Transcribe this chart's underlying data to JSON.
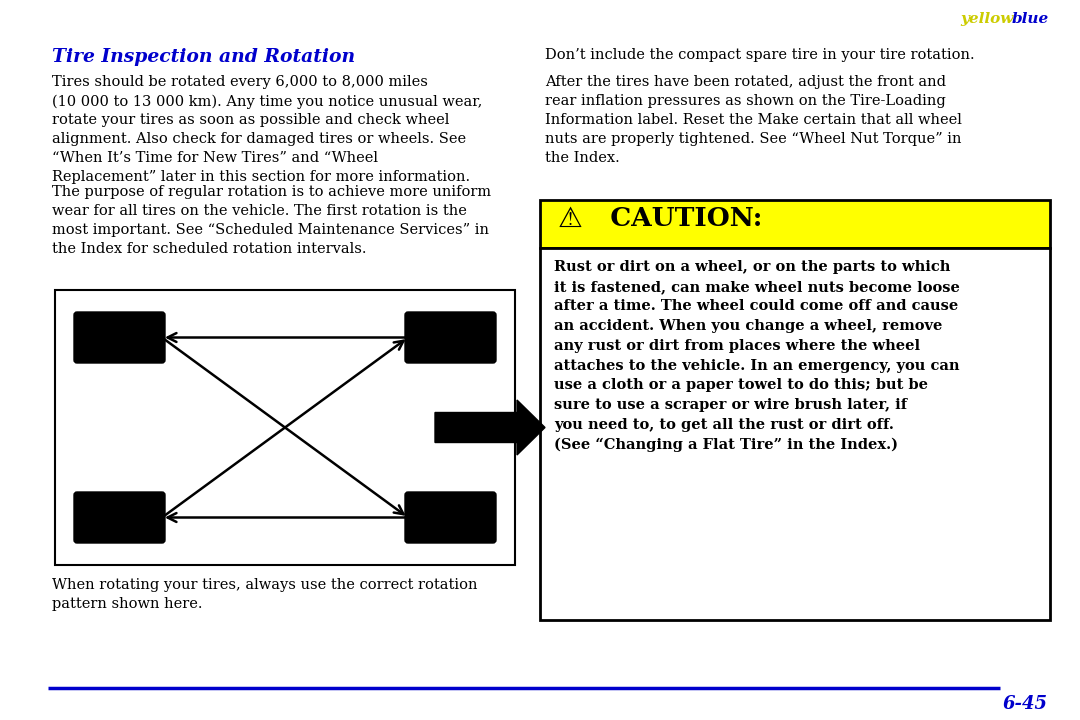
{
  "bg_color": "#ffffff",
  "title_text": "Tire Inspection and Rotation",
  "title_color": "#0000cc",
  "left_col_para1": "Tires should be rotated every 6,000 to 8,000 miles\n(10 000 to 13 000 km). Any time you notice unusual wear,\nrotate your tires as soon as possible and check wheel\nalignment. Also check for damaged tires or wheels. See\n“When It’s Time for New Tires” and “Wheel\nReplacement” later in this section for more information.",
  "left_col_para2": "The purpose of regular rotation is to achieve more uniform\nwear for all tires on the vehicle. The first rotation is the\nmost important. See “Scheduled Maintenance Services” in\nthe Index for scheduled rotation intervals.",
  "left_col_caption": "When rotating your tires, always use the correct rotation\npattern shown here.",
  "right_col_para1": "Don’t include the compact spare tire in your tire rotation.",
  "right_col_para2": "After the tires have been rotated, adjust the front and\nrear inflation pressures as shown on the Tire-Loading\nInformation label. Reset the Make certain that all wheel\nnuts are properly tightened. See “Wheel Nut Torque” in\nthe Index.",
  "caution_title": "  CAUTION:",
  "caution_bg": "#ffff00",
  "caution_border": "#000000",
  "caution_text": "Rust or dirt on a wheel, or on the parts to which\nit is fastened, can make wheel nuts become loose\nafter a time. The wheel could come off and cause\nan accident. When you change a wheel, remove\nany rust or dirt from places where the wheel\nattaches to the vehicle. In an emergency, you can\nuse a cloth or a paper towel to do this; but be\nsure to use a scraper or wire brush later, if\nyou need to, to get all the rust or dirt off.\n(See “Changing a Flat Tire” in the Index.)",
  "page_number": "6-45",
  "page_color": "#0000cc",
  "line_color": "#0000cc",
  "body_font_size": 10.5,
  "caption_font_size": 10.5,
  "caution_font_size": 10.5,
  "title_font_size": 13.5
}
